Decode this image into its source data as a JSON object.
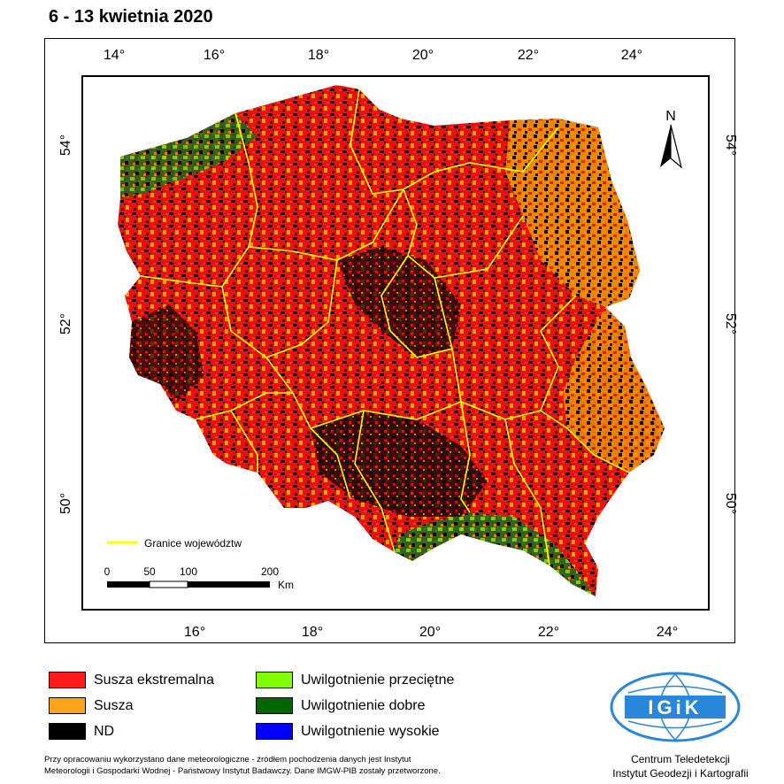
{
  "title": "6 - 13 kwietnia 2020",
  "axes": {
    "top_lon_labels": [
      "14°",
      "16°",
      "18°",
      "20°",
      "22°",
      "24°"
    ],
    "bottom_lon_labels": [
      "16°",
      "18°",
      "20°",
      "22°",
      "24°"
    ],
    "left_lat_labels": [
      "54°",
      "52°",
      "50°"
    ],
    "right_lat_labels": [
      "54°",
      "52°",
      "50°"
    ]
  },
  "map": {
    "north_label": "N",
    "boundary_legend_label": "Granice województw",
    "scalebar": {
      "labels": [
        "0",
        "50",
        "100",
        "200"
      ],
      "unit": "Km"
    },
    "colors": {
      "extreme_drought": "#ff0000",
      "drought": "#ff9900",
      "nd": "#000000",
      "boundary": "#ffff00"
    }
  },
  "legend": [
    {
      "label": "Susza ekstremalna",
      "color": "#ff1a1a"
    },
    {
      "label": "Susza",
      "color": "#ffa31a"
    },
    {
      "label": "ND",
      "color": "#000000"
    },
    {
      "label": "Uwilgotnienie przeciętne",
      "color": "#80ff00"
    },
    {
      "label": "Uwilgotnienie dobre",
      "color": "#006600"
    },
    {
      "label": "Uwilgotnienie wysokie",
      "color": "#0000ff"
    }
  ],
  "footer": {
    "line1": "Przy opracowaniu wykorzystano dane meteorologiczne - źródłem pochodzenia danych jest Instytut",
    "line2": "Meteorologii i Gospodarki Wodnej - Państwowy Instytut Badawczy. Dane IMGW-PIB zostały przetworzone."
  },
  "logo": {
    "text": "IGiK"
  },
  "institute": {
    "line1": "Centrum Teledetekcji",
    "line2": "Instytut Geodezji i Kartografii"
  }
}
